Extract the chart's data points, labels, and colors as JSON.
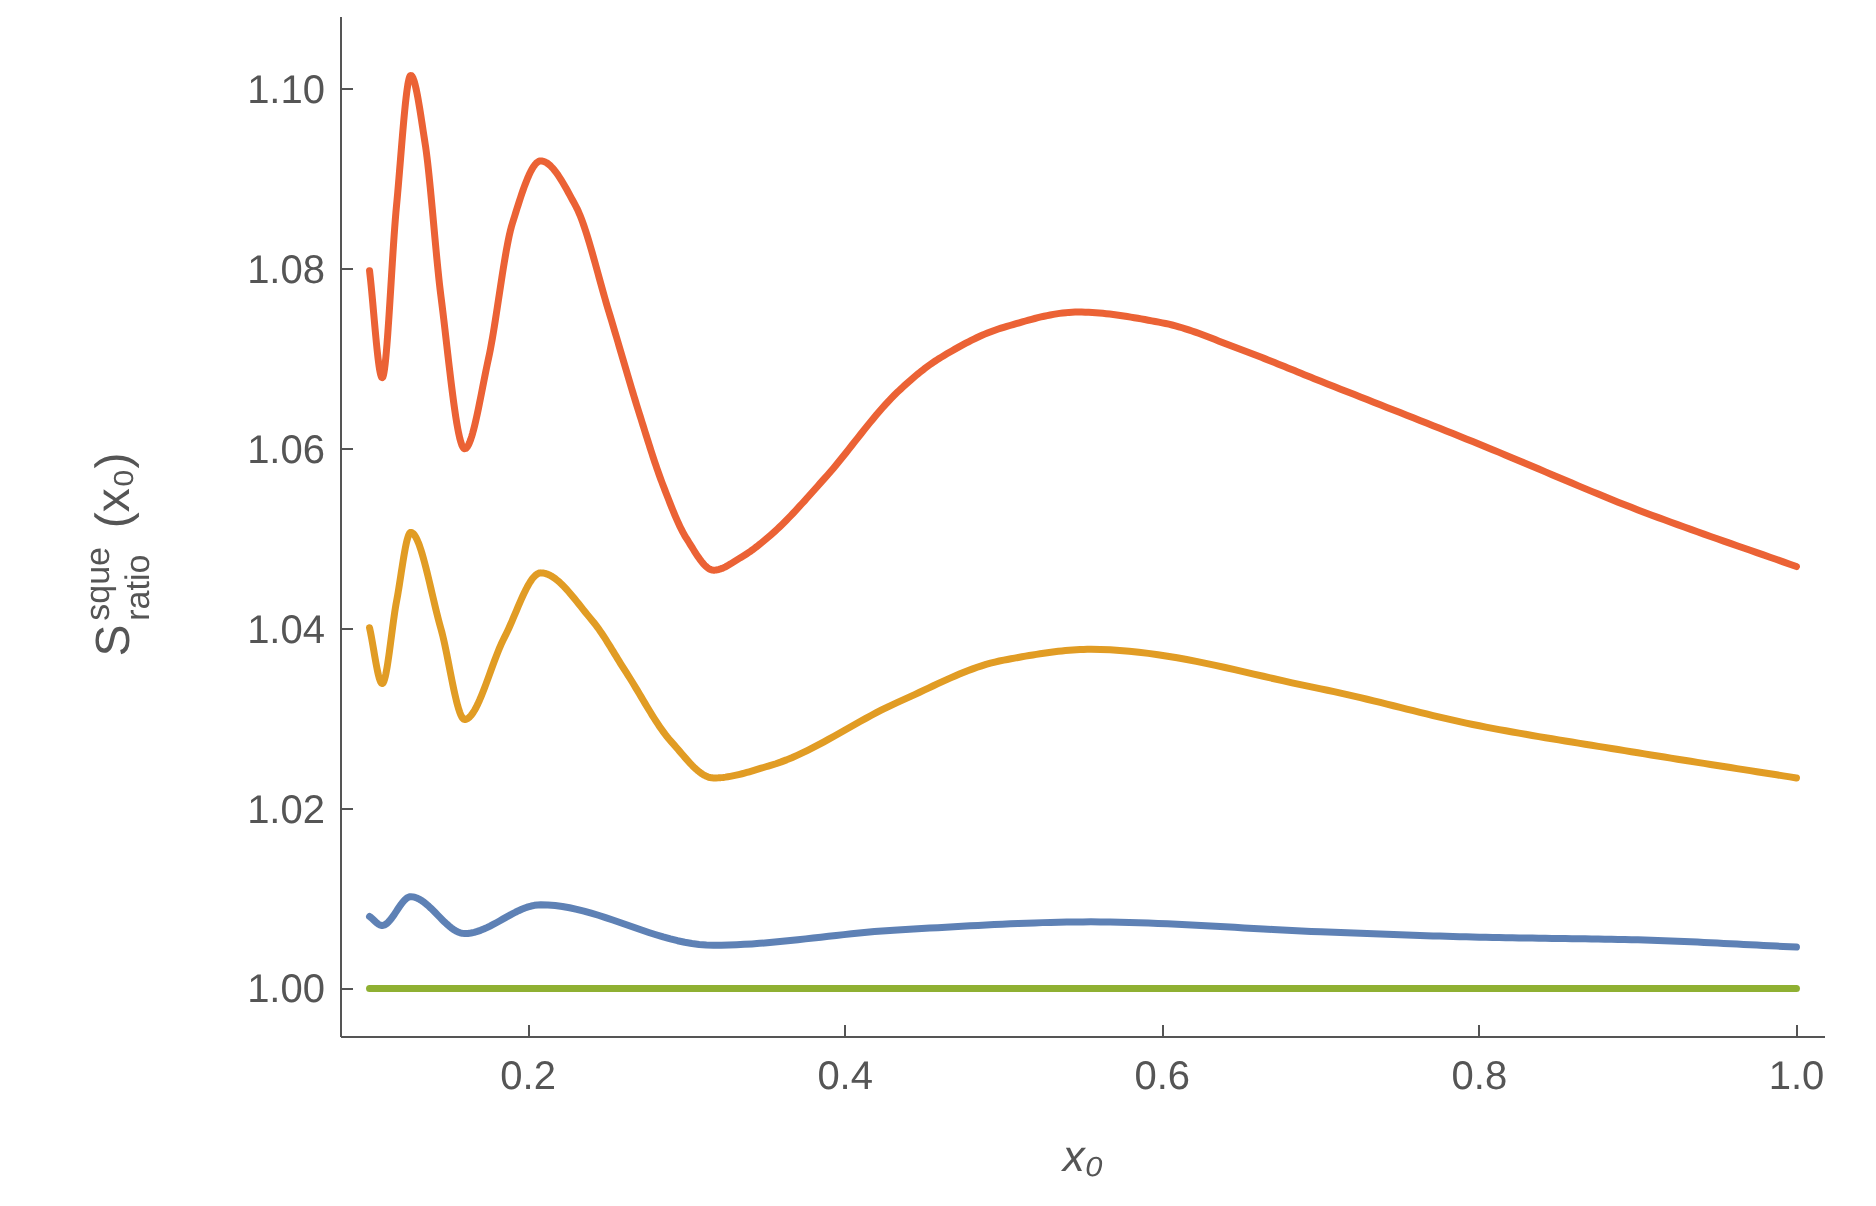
{
  "chart_data": {
    "type": "line",
    "xlabel": "x₀",
    "ylabel": "S$^{sque}$$_{ratio}$(x₀)",
    "xlim": [
      0.082,
      1.018
    ],
    "ylim": [
      0.9946,
      1.108
    ],
    "xticks": [
      0.2,
      0.4,
      0.6,
      0.8,
      {
        "value": 1.0,
        "label": "1.0"
      }
    ],
    "yticks": [
      {
        "value": 1.0,
        "label": "1.00"
      },
      {
        "value": 1.02,
        "label": "1.02"
      },
      {
        "value": 1.04,
        "label": "1.04"
      },
      {
        "value": 1.06,
        "label": "1.06"
      },
      {
        "value": 1.08,
        "label": "1.08"
      },
      {
        "value": 1.1,
        "label": "1.10"
      }
    ],
    "grid": false,
    "line_style": "solid",
    "series": [
      {
        "color": "#eb6235",
        "x": [
          0.1,
          0.108,
          0.117,
          0.126,
          0.135,
          0.145,
          0.16,
          0.175,
          0.19,
          0.208,
          0.23,
          0.251,
          0.27,
          0.285,
          0.3,
          0.317,
          0.335,
          0.353,
          0.387,
          0.433,
          0.459,
          0.5,
          0.547,
          0.6,
          0.65,
          0.7,
          0.8,
          0.9,
          1.0
        ],
        "values": [
          1.0798,
          1.0679,
          1.087,
          1.1015,
          1.094,
          1.077,
          1.06,
          1.07,
          1.085,
          1.092,
          1.087,
          1.0752,
          1.064,
          1.056,
          1.05,
          1.0465,
          1.048,
          1.0504,
          1.0567,
          1.0663,
          1.07,
          1.0735,
          1.0752,
          1.074,
          1.071,
          1.0675,
          1.0605,
          1.0532,
          1.0469
        ]
      },
      {
        "color": "#e19c24",
        "x": [
          0.1,
          0.108,
          0.117,
          0.126,
          0.145,
          0.16,
          0.185,
          0.208,
          0.24,
          0.262,
          0.29,
          0.317,
          0.353,
          0.433,
          0.5,
          0.555,
          0.7,
          0.8,
          0.9,
          1.0
        ],
        "values": [
          1.0401,
          1.0339,
          1.043,
          1.0507,
          1.04,
          1.0299,
          1.039,
          1.0462,
          1.041,
          1.0351,
          1.0275,
          1.0234,
          1.0248,
          1.0318,
          1.0365,
          1.0377,
          1.0333,
          1.0292,
          1.0262,
          1.0234
        ]
      },
      {
        "color": "#5e81b5",
        "x": [
          0.1,
          0.108,
          0.126,
          0.16,
          0.208,
          0.317,
          0.433,
          0.555,
          0.7,
          0.8,
          0.9,
          1.0
        ],
        "values": [
          1.008,
          1.007,
          1.0102,
          1.0061,
          1.0093,
          1.0048,
          1.0065,
          1.0074,
          1.0063,
          1.0057,
          1.0054,
          1.0046
        ]
      },
      {
        "color": "#8fb032",
        "x": [
          0.1,
          1.0
        ],
        "values": [
          1.0,
          1.0
        ]
      }
    ]
  }
}
